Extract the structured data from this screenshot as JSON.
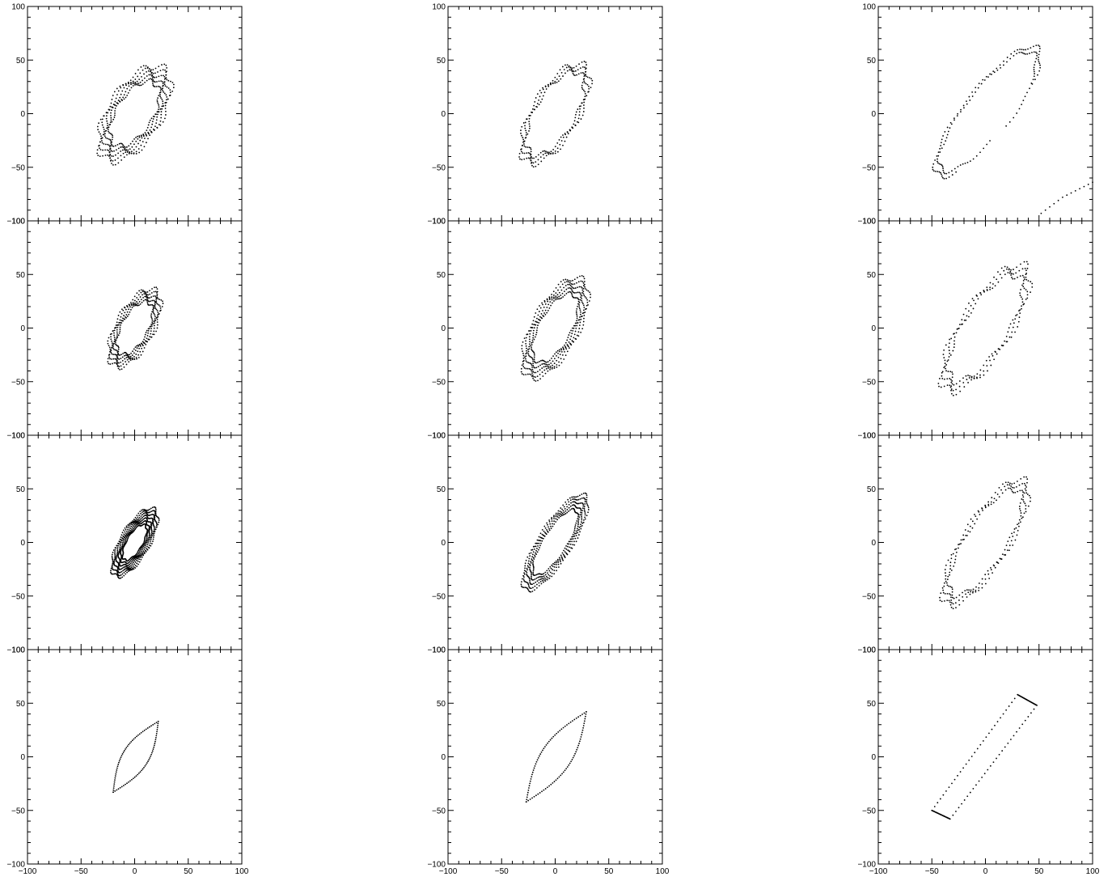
{
  "figure": {
    "rows": 4,
    "cols": 3,
    "x_ticks": [
      "−100",
      "−50",
      "0",
      "50",
      "100"
    ],
    "y_ticks": [
      "100",
      "50",
      "0",
      "−50",
      "−100"
    ],
    "colors": {
      "frame": "#000000",
      "points": "#000000"
    }
  },
  "chart_data": [
    {
      "type": "scatter",
      "row": 0,
      "col": 0,
      "shape": "ellipse-wobble",
      "xlim": [
        -100,
        100
      ],
      "ylim": [
        -100,
        100
      ],
      "grid": false,
      "center": [
        0,
        0
      ],
      "semi_major": 50,
      "semi_minor": 25,
      "tilt_deg": 58,
      "wobble": 4,
      "loops": 5,
      "points_per_loop": 90
    },
    {
      "type": "scatter",
      "row": 0,
      "col": 1,
      "shape": "ellipse-wobble",
      "xlim": [
        -100,
        100
      ],
      "ylim": [
        -100,
        100
      ],
      "grid": false,
      "center": [
        0,
        0
      ],
      "semi_major": 52,
      "semi_minor": 22,
      "tilt_deg": 60,
      "wobble": 4,
      "loops": 3,
      "points_per_loop": 90
    },
    {
      "type": "scatter",
      "row": 0,
      "col": 2,
      "shape": "ellipse-open",
      "xlim": [
        -100,
        100
      ],
      "ylim": [
        -100,
        100
      ],
      "grid": false,
      "center": [
        2,
        2
      ],
      "semi_major": 75,
      "semi_minor": 22,
      "tilt_deg": 52,
      "wobble": 3,
      "loops": 2,
      "points_per_loop": 80,
      "extra_x": [
        52,
        56,
        60,
        64,
        68,
        72,
        76,
        80,
        84,
        88,
        92,
        96,
        100
      ],
      "extra_y": [
        -93,
        -90,
        -87,
        -84,
        -81,
        -78,
        -76,
        -74,
        -72,
        -70,
        -68,
        -66,
        -64
      ]
    },
    {
      "type": "scatter",
      "row": 1,
      "col": 0,
      "shape": "ellipse-wobble",
      "xlim": [
        -100,
        100
      ],
      "ylim": [
        -100,
        100
      ],
      "grid": false,
      "center": [
        0,
        0
      ],
      "semi_major": 40,
      "semi_minor": 18,
      "tilt_deg": 62,
      "wobble": 3,
      "loops": 5,
      "points_per_loop": 80
    },
    {
      "type": "scatter",
      "row": 1,
      "col": 1,
      "shape": "ellipse-wobble",
      "xlim": [
        -100,
        100
      ],
      "ylim": [
        -100,
        100
      ],
      "grid": false,
      "center": [
        0,
        0
      ],
      "semi_major": 52,
      "semi_minor": 22,
      "tilt_deg": 62,
      "wobble": 3,
      "loops": 5,
      "points_per_loop": 90
    },
    {
      "type": "scatter",
      "row": 1,
      "col": 2,
      "shape": "ellipse-wobble",
      "xlim": [
        -100,
        100
      ],
      "ylim": [
        -100,
        100
      ],
      "grid": false,
      "center": [
        0,
        0
      ],
      "semi_major": 68,
      "semi_minor": 24,
      "tilt_deg": 58,
      "wobble": 5,
      "loops": 3,
      "points_per_loop": 80
    },
    {
      "type": "scatter",
      "row": 2,
      "col": 0,
      "shape": "ellipse-wobble",
      "xlim": [
        -100,
        100
      ],
      "ylim": [
        -100,
        100
      ],
      "grid": false,
      "center": [
        0,
        0
      ],
      "semi_major": 36,
      "semi_minor": 14,
      "tilt_deg": 60,
      "wobble": 2,
      "loops": 7,
      "points_per_loop": 100
    },
    {
      "type": "scatter",
      "row": 2,
      "col": 1,
      "shape": "ellipse-wobble",
      "xlim": [
        -100,
        100
      ],
      "ylim": [
        -100,
        100
      ],
      "grid": false,
      "center": [
        0,
        0
      ],
      "semi_major": 52,
      "semi_minor": 16,
      "tilt_deg": 58,
      "wobble": 2,
      "loops": 5,
      "points_per_loop": 90
    },
    {
      "type": "scatter",
      "row": 2,
      "col": 2,
      "shape": "ellipse-wobble",
      "xlim": [
        -100,
        100
      ],
      "ylim": [
        -100,
        100
      ],
      "grid": false,
      "center": [
        0,
        0
      ],
      "semi_major": 68,
      "semi_minor": 22,
      "tilt_deg": 58,
      "wobble": 4,
      "loops": 3,
      "points_per_loop": 80
    },
    {
      "type": "scatter",
      "row": 3,
      "col": 0,
      "shape": "lens",
      "xlim": [
        -100,
        100
      ],
      "ylim": [
        -100,
        100
      ],
      "grid": false,
      "p1": [
        -20,
        -33
      ],
      "p2": [
        22,
        33
      ],
      "bulge": 12,
      "points_per_side": 45
    },
    {
      "type": "scatter",
      "row": 3,
      "col": 1,
      "shape": "lens",
      "xlim": [
        -100,
        100
      ],
      "ylim": [
        -100,
        100
      ],
      "grid": false,
      "p1": [
        -27,
        -42
      ],
      "p2": [
        29,
        42
      ],
      "bulge": 14,
      "points_per_side": 50
    },
    {
      "type": "scatter",
      "row": 3,
      "col": 2,
      "shape": "polygon",
      "xlim": [
        -100,
        100
      ],
      "ylim": [
        -100,
        100
      ],
      "grid": false,
      "vertices": [
        [
          -50,
          -50
        ],
        [
          -33,
          -58
        ],
        [
          48,
          48
        ],
        [
          30,
          58
        ],
        [
          -50,
          -50
        ]
      ],
      "points_per_side": 30
    }
  ]
}
